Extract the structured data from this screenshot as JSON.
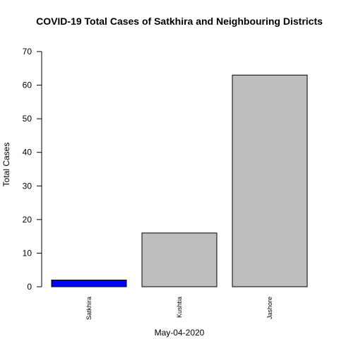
{
  "chart_data": {
    "type": "bar",
    "title": "COVID-19 Total Cases of Satkhira and Neighbouring Districts",
    "xlabel": "May-04-2020",
    "ylabel": "Total Cases",
    "categories": [
      "Satkhira",
      "Kushtia",
      "Jashore"
    ],
    "values": [
      2,
      16,
      63
    ],
    "bar_colors": [
      "#0000ff",
      "#bebebe",
      "#bebebe"
    ],
    "ylim": [
      0,
      70
    ],
    "yticks": [
      0,
      10,
      20,
      30,
      40,
      50,
      60,
      70
    ],
    "grid": false,
    "legend": "none"
  }
}
